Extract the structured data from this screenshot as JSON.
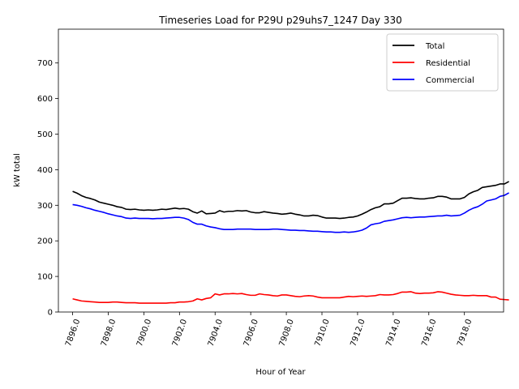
{
  "chart_data": {
    "type": "line",
    "title": "Timeseries Load for P29U p29uhs7_1247  Day 330",
    "xlabel": "Hour of Year",
    "ylabel": "kW total",
    "xlim": [
      7895.2,
      7920.2
    ],
    "ylim": [
      0,
      795
    ],
    "xticks": [
      7896,
      7898,
      7900,
      7902,
      7904,
      7906,
      7908,
      7910,
      7912,
      7914,
      7916,
      7918
    ],
    "xtick_labels": [
      "7896.0",
      "7898.0",
      "7900.0",
      "7902.0",
      "7904.0",
      "7906.0",
      "7908.0",
      "7910.0",
      "7912.0",
      "7914.0",
      "7916.0",
      "7918.0"
    ],
    "yticks": [
      0,
      100,
      200,
      300,
      400,
      500,
      600,
      700
    ],
    "ytick_labels": [
      "0",
      "100",
      "200",
      "300",
      "400",
      "500",
      "600",
      "700"
    ],
    "grid": false,
    "legend_position": "top-right",
    "x_start": 7896.0,
    "x_step": 0.25,
    "series": [
      {
        "name": "Total",
        "color": "#000000",
        "values": [
          339,
          334,
          327,
          322,
          319,
          315,
          309,
          306,
          303,
          300,
          296,
          294,
          289,
          288,
          289,
          287,
          286,
          287,
          286,
          287,
          289,
          288,
          290,
          292,
          290,
          291,
          289,
          282,
          278,
          284,
          276,
          277,
          278,
          285,
          281,
          283,
          283,
          285,
          284,
          285,
          281,
          279,
          279,
          282,
          280,
          278,
          277,
          275,
          276,
          278,
          275,
          273,
          270,
          270,
          272,
          271,
          267,
          264,
          264,
          264,
          263,
          264,
          266,
          267,
          270,
          275,
          281,
          288,
          293,
          296,
          304,
          304,
          306,
          313,
          320,
          320,
          321,
          319,
          318,
          318,
          320,
          321,
          325,
          325,
          323,
          318,
          318,
          318,
          322,
          332,
          338,
          342,
          350,
          352,
          354,
          356,
          360,
          360,
          367
        ]
      },
      {
        "name": "Residential",
        "color": "#ff0000",
        "values": [
          37,
          34,
          31,
          30,
          29,
          28,
          27,
          27,
          27,
          28,
          28,
          27,
          26,
          26,
          26,
          25,
          25,
          25,
          25,
          25,
          25,
          25,
          26,
          26,
          28,
          28,
          29,
          31,
          37,
          34,
          38,
          40,
          51,
          48,
          51,
          51,
          52,
          51,
          52,
          49,
          47,
          47,
          51,
          49,
          48,
          46,
          45,
          48,
          48,
          46,
          44,
          43,
          45,
          46,
          45,
          42,
          40,
          40,
          40,
          40,
          40,
          42,
          44,
          43,
          44,
          45,
          44,
          45,
          46,
          49,
          48,
          48,
          49,
          52,
          56,
          56,
          57,
          53,
          52,
          53,
          53,
          54,
          57,
          56,
          53,
          50,
          48,
          47,
          46,
          46,
          47,
          46,
          46,
          46,
          42,
          42,
          36,
          35,
          34
        ]
      },
      {
        "name": "Commercial",
        "color": "#0000ff",
        "values": [
          302,
          300,
          297,
          293,
          290,
          286,
          283,
          280,
          276,
          273,
          270,
          268,
          264,
          263,
          264,
          263,
          263,
          263,
          262,
          263,
          263,
          264,
          265,
          266,
          266,
          264,
          260,
          252,
          247,
          247,
          242,
          239,
          237,
          234,
          232,
          232,
          232,
          233,
          233,
          233,
          233,
          232,
          232,
          232,
          232,
          233,
          233,
          232,
          231,
          230,
          230,
          229,
          229,
          228,
          227,
          227,
          226,
          225,
          225,
          224,
          224,
          225,
          224,
          225,
          227,
          230,
          236,
          245,
          248,
          250,
          255,
          257,
          259,
          262,
          265,
          266,
          265,
          266,
          267,
          267,
          268,
          269,
          270,
          270,
          272,
          270,
          271,
          272,
          278,
          286,
          292,
          296,
          303,
          312,
          315,
          318,
          325,
          328,
          335
        ]
      }
    ]
  }
}
